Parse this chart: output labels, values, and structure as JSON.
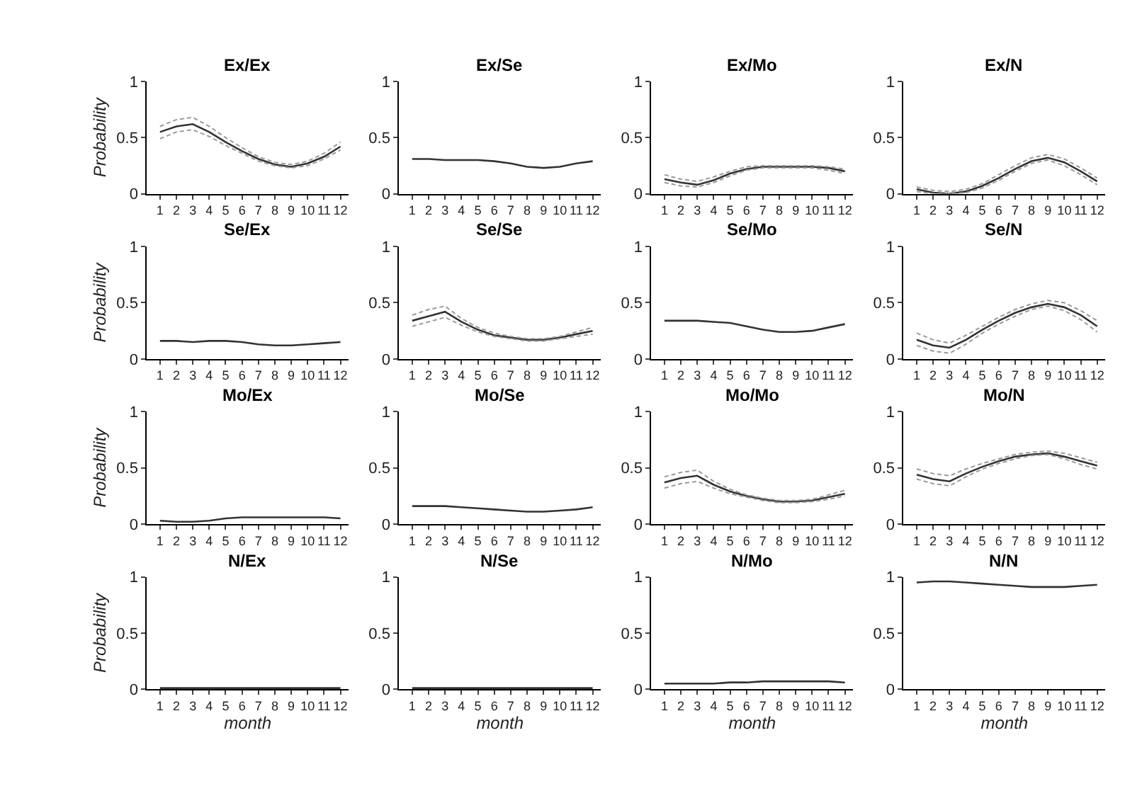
{
  "chart_data": [
    {
      "type": "line",
      "title": "Ex/Ex",
      "ylabel": "Probability",
      "x": [
        1,
        2,
        3,
        4,
        5,
        6,
        7,
        8,
        9,
        10,
        11,
        12
      ],
      "xlim": [
        0.2,
        12.5
      ],
      "xticks": [
        1,
        2,
        3,
        4,
        5,
        6,
        7,
        8,
        9,
        10,
        11,
        12
      ],
      "ylim": [
        0,
        1
      ],
      "yticks": [
        0,
        0.5,
        1
      ],
      "series": [
        {
          "color": "#333333",
          "values": [
            0.55,
            0.6,
            0.62,
            0.55,
            0.46,
            0.38,
            0.31,
            0.26,
            0.24,
            0.27,
            0.33,
            0.42
          ]
        },
        {
          "color": "#9a9a9a",
          "line_style": "dashed",
          "values": [
            0.49,
            0.55,
            0.57,
            0.51,
            0.43,
            0.36,
            0.29,
            0.25,
            0.23,
            0.25,
            0.31,
            0.39
          ]
        },
        {
          "color": "#9a9a9a",
          "line_style": "dashed",
          "values": [
            0.6,
            0.66,
            0.68,
            0.6,
            0.5,
            0.41,
            0.33,
            0.28,
            0.26,
            0.29,
            0.36,
            0.46
          ]
        }
      ]
    },
    {
      "type": "line",
      "title": "Ex/Se",
      "x": [
        1,
        2,
        3,
        4,
        5,
        6,
        7,
        8,
        9,
        10,
        11,
        12
      ],
      "xlim": [
        0.2,
        12.5
      ],
      "xticks": [
        1,
        2,
        3,
        4,
        5,
        6,
        7,
        8,
        9,
        10,
        11,
        12
      ],
      "ylim": [
        0,
        1
      ],
      "yticks": [
        0,
        0.5,
        1
      ],
      "series": [
        {
          "color": "#333333",
          "values": [
            0.31,
            0.31,
            0.3,
            0.3,
            0.3,
            0.29,
            0.27,
            0.24,
            0.23,
            0.24,
            0.27,
            0.29
          ]
        }
      ]
    },
    {
      "type": "line",
      "title": "Ex/Mo",
      "x": [
        1,
        2,
        3,
        4,
        5,
        6,
        7,
        8,
        9,
        10,
        11,
        12
      ],
      "xlim": [
        0.2,
        12.5
      ],
      "xticks": [
        1,
        2,
        3,
        4,
        5,
        6,
        7,
        8,
        9,
        10,
        11,
        12
      ],
      "ylim": [
        0,
        1
      ],
      "yticks": [
        0,
        0.5,
        1
      ],
      "series": [
        {
          "color": "#333333",
          "values": [
            0.13,
            0.1,
            0.08,
            0.12,
            0.18,
            0.22,
            0.24,
            0.24,
            0.24,
            0.24,
            0.23,
            0.2
          ]
        },
        {
          "color": "#9a9a9a",
          "line_style": "dashed",
          "values": [
            0.1,
            0.07,
            0.06,
            0.1,
            0.16,
            0.21,
            0.23,
            0.23,
            0.23,
            0.23,
            0.21,
            0.18
          ]
        },
        {
          "color": "#9a9a9a",
          "line_style": "dashed",
          "values": [
            0.17,
            0.13,
            0.11,
            0.15,
            0.2,
            0.24,
            0.25,
            0.25,
            0.25,
            0.25,
            0.24,
            0.22
          ]
        }
      ]
    },
    {
      "type": "line",
      "title": "Ex/N",
      "x": [
        1,
        2,
        3,
        4,
        5,
        6,
        7,
        8,
        9,
        10,
        11,
        12
      ],
      "xlim": [
        0.2,
        12.5
      ],
      "xticks": [
        1,
        2,
        3,
        4,
        5,
        6,
        7,
        8,
        9,
        10,
        11,
        12
      ],
      "ylim": [
        0,
        1
      ],
      "yticks": [
        0,
        0.5,
        1
      ],
      "series": [
        {
          "color": "#333333",
          "values": [
            0.04,
            0.01,
            0.0,
            0.02,
            0.07,
            0.14,
            0.22,
            0.29,
            0.32,
            0.28,
            0.2,
            0.11
          ]
        },
        {
          "color": "#9a9a9a",
          "line_style": "dashed",
          "values": [
            0.02,
            0.0,
            0.0,
            0.01,
            0.05,
            0.12,
            0.2,
            0.27,
            0.3,
            0.25,
            0.17,
            0.08
          ]
        },
        {
          "color": "#9a9a9a",
          "line_style": "dashed",
          "values": [
            0.06,
            0.03,
            0.02,
            0.04,
            0.09,
            0.17,
            0.25,
            0.32,
            0.35,
            0.31,
            0.23,
            0.14
          ]
        }
      ]
    },
    {
      "type": "line",
      "title": "Se/Ex",
      "ylabel": "Probability",
      "x": [
        1,
        2,
        3,
        4,
        5,
        6,
        7,
        8,
        9,
        10,
        11,
        12
      ],
      "xlim": [
        0.2,
        12.5
      ],
      "xticks": [
        1,
        2,
        3,
        4,
        5,
        6,
        7,
        8,
        9,
        10,
        11,
        12
      ],
      "ylim": [
        0,
        1
      ],
      "yticks": [
        0,
        0.5,
        1
      ],
      "series": [
        {
          "color": "#333333",
          "values": [
            0.16,
            0.16,
            0.15,
            0.16,
            0.16,
            0.15,
            0.13,
            0.12,
            0.12,
            0.13,
            0.14,
            0.15
          ]
        }
      ]
    },
    {
      "type": "line",
      "title": "Se/Se",
      "x": [
        1,
        2,
        3,
        4,
        5,
        6,
        7,
        8,
        9,
        10,
        11,
        12
      ],
      "xlim": [
        0.2,
        12.5
      ],
      "xticks": [
        1,
        2,
        3,
        4,
        5,
        6,
        7,
        8,
        9,
        10,
        11,
        12
      ],
      "ylim": [
        0,
        1
      ],
      "yticks": [
        0,
        0.5,
        1
      ],
      "series": [
        {
          "color": "#333333",
          "values": [
            0.34,
            0.38,
            0.42,
            0.33,
            0.26,
            0.21,
            0.19,
            0.17,
            0.17,
            0.19,
            0.22,
            0.25
          ]
        },
        {
          "color": "#9a9a9a",
          "line_style": "dashed",
          "values": [
            0.29,
            0.33,
            0.37,
            0.3,
            0.24,
            0.2,
            0.18,
            0.16,
            0.16,
            0.18,
            0.2,
            0.22
          ]
        },
        {
          "color": "#9a9a9a",
          "line_style": "dashed",
          "values": [
            0.39,
            0.44,
            0.47,
            0.36,
            0.28,
            0.23,
            0.2,
            0.18,
            0.18,
            0.2,
            0.24,
            0.28
          ]
        }
      ]
    },
    {
      "type": "line",
      "title": "Se/Mo",
      "x": [
        1,
        2,
        3,
        4,
        5,
        6,
        7,
        8,
        9,
        10,
        11,
        12
      ],
      "xlim": [
        0.2,
        12.5
      ],
      "xticks": [
        1,
        2,
        3,
        4,
        5,
        6,
        7,
        8,
        9,
        10,
        11,
        12
      ],
      "ylim": [
        0,
        1
      ],
      "yticks": [
        0,
        0.5,
        1
      ],
      "series": [
        {
          "color": "#333333",
          "values": [
            0.34,
            0.34,
            0.34,
            0.33,
            0.32,
            0.29,
            0.26,
            0.24,
            0.24,
            0.25,
            0.28,
            0.31
          ]
        }
      ]
    },
    {
      "type": "line",
      "title": "Se/N",
      "x": [
        1,
        2,
        3,
        4,
        5,
        6,
        7,
        8,
        9,
        10,
        11,
        12
      ],
      "xlim": [
        0.2,
        12.5
      ],
      "xticks": [
        1,
        2,
        3,
        4,
        5,
        6,
        7,
        8,
        9,
        10,
        11,
        12
      ],
      "ylim": [
        0,
        1
      ],
      "yticks": [
        0,
        0.5,
        1
      ],
      "series": [
        {
          "color": "#333333",
          "values": [
            0.17,
            0.12,
            0.1,
            0.17,
            0.26,
            0.34,
            0.41,
            0.46,
            0.49,
            0.46,
            0.39,
            0.29
          ]
        },
        {
          "color": "#9a9a9a",
          "line_style": "dashed",
          "values": [
            0.12,
            0.07,
            0.05,
            0.13,
            0.23,
            0.31,
            0.38,
            0.44,
            0.47,
            0.43,
            0.35,
            0.24
          ]
        },
        {
          "color": "#9a9a9a",
          "line_style": "dashed",
          "values": [
            0.23,
            0.17,
            0.14,
            0.21,
            0.29,
            0.37,
            0.44,
            0.49,
            0.52,
            0.5,
            0.43,
            0.34
          ]
        }
      ]
    },
    {
      "type": "line",
      "title": "Mo/Ex",
      "ylabel": "Probability",
      "x": [
        1,
        2,
        3,
        4,
        5,
        6,
        7,
        8,
        9,
        10,
        11,
        12
      ],
      "xlim": [
        0.2,
        12.5
      ],
      "xticks": [
        1,
        2,
        3,
        4,
        5,
        6,
        7,
        8,
        9,
        10,
        11,
        12
      ],
      "ylim": [
        0,
        1
      ],
      "yticks": [
        0,
        0.5,
        1
      ],
      "series": [
        {
          "color": "#333333",
          "values": [
            0.03,
            0.02,
            0.02,
            0.03,
            0.05,
            0.06,
            0.06,
            0.06,
            0.06,
            0.06,
            0.06,
            0.05
          ]
        }
      ]
    },
    {
      "type": "line",
      "title": "Mo/Se",
      "x": [
        1,
        2,
        3,
        4,
        5,
        6,
        7,
        8,
        9,
        10,
        11,
        12
      ],
      "xlim": [
        0.2,
        12.5
      ],
      "xticks": [
        1,
        2,
        3,
        4,
        5,
        6,
        7,
        8,
        9,
        10,
        11,
        12
      ],
      "ylim": [
        0,
        1
      ],
      "yticks": [
        0,
        0.5,
        1
      ],
      "series": [
        {
          "color": "#333333",
          "values": [
            0.16,
            0.16,
            0.16,
            0.15,
            0.14,
            0.13,
            0.12,
            0.11,
            0.11,
            0.12,
            0.13,
            0.15
          ]
        }
      ]
    },
    {
      "type": "line",
      "title": "Mo/Mo",
      "x": [
        1,
        2,
        3,
        4,
        5,
        6,
        7,
        8,
        9,
        10,
        11,
        12
      ],
      "xlim": [
        0.2,
        12.5
      ],
      "xticks": [
        1,
        2,
        3,
        4,
        5,
        6,
        7,
        8,
        9,
        10,
        11,
        12
      ],
      "ylim": [
        0,
        1
      ],
      "yticks": [
        0,
        0.5,
        1
      ],
      "series": [
        {
          "color": "#333333",
          "values": [
            0.37,
            0.41,
            0.43,
            0.35,
            0.29,
            0.25,
            0.22,
            0.2,
            0.2,
            0.21,
            0.24,
            0.27
          ]
        },
        {
          "color": "#9a9a9a",
          "line_style": "dashed",
          "values": [
            0.32,
            0.36,
            0.38,
            0.32,
            0.27,
            0.24,
            0.21,
            0.19,
            0.19,
            0.2,
            0.22,
            0.25
          ]
        },
        {
          "color": "#9a9a9a",
          "line_style": "dashed",
          "values": [
            0.42,
            0.46,
            0.48,
            0.38,
            0.31,
            0.26,
            0.23,
            0.21,
            0.21,
            0.22,
            0.26,
            0.3
          ]
        }
      ]
    },
    {
      "type": "line",
      "title": "Mo/N",
      "x": [
        1,
        2,
        3,
        4,
        5,
        6,
        7,
        8,
        9,
        10,
        11,
        12
      ],
      "xlim": [
        0.2,
        12.5
      ],
      "xticks": [
        1,
        2,
        3,
        4,
        5,
        6,
        7,
        8,
        9,
        10,
        11,
        12
      ],
      "ylim": [
        0,
        1
      ],
      "yticks": [
        0,
        0.5,
        1
      ],
      "series": [
        {
          "color": "#333333",
          "values": [
            0.44,
            0.4,
            0.38,
            0.45,
            0.51,
            0.56,
            0.6,
            0.62,
            0.63,
            0.6,
            0.56,
            0.52
          ]
        },
        {
          "color": "#9a9a9a",
          "line_style": "dashed",
          "values": [
            0.4,
            0.36,
            0.34,
            0.42,
            0.49,
            0.54,
            0.58,
            0.61,
            0.62,
            0.58,
            0.53,
            0.49
          ]
        },
        {
          "color": "#9a9a9a",
          "line_style": "dashed",
          "values": [
            0.49,
            0.45,
            0.43,
            0.49,
            0.54,
            0.58,
            0.62,
            0.64,
            0.65,
            0.63,
            0.59,
            0.55
          ]
        }
      ]
    },
    {
      "type": "line",
      "title": "N/Ex",
      "ylabel": "Probability",
      "xlabel": "month",
      "x": [
        1,
        2,
        3,
        4,
        5,
        6,
        7,
        8,
        9,
        10,
        11,
        12
      ],
      "xlim": [
        0.2,
        12.5
      ],
      "xticks": [
        1,
        2,
        3,
        4,
        5,
        6,
        7,
        8,
        9,
        10,
        11,
        12
      ],
      "ylim": [
        0,
        1
      ],
      "yticks": [
        0,
        0.5,
        1
      ],
      "series": [
        {
          "color": "#333333",
          "values": [
            0.01,
            0.01,
            0.01,
            0.01,
            0.01,
            0.01,
            0.01,
            0.01,
            0.01,
            0.01,
            0.01,
            0.01
          ]
        }
      ]
    },
    {
      "type": "line",
      "title": "N/Se",
      "xlabel": "month",
      "x": [
        1,
        2,
        3,
        4,
        5,
        6,
        7,
        8,
        9,
        10,
        11,
        12
      ],
      "xlim": [
        0.2,
        12.5
      ],
      "xticks": [
        1,
        2,
        3,
        4,
        5,
        6,
        7,
        8,
        9,
        10,
        11,
        12
      ],
      "ylim": [
        0,
        1
      ],
      "yticks": [
        0,
        0.5,
        1
      ],
      "series": [
        {
          "color": "#333333",
          "values": [
            0.01,
            0.01,
            0.01,
            0.01,
            0.01,
            0.01,
            0.01,
            0.01,
            0.01,
            0.01,
            0.01,
            0.01
          ]
        }
      ]
    },
    {
      "type": "line",
      "title": "N/Mo",
      "xlabel": "month",
      "x": [
        1,
        2,
        3,
        4,
        5,
        6,
        7,
        8,
        9,
        10,
        11,
        12
      ],
      "xlim": [
        0.2,
        12.5
      ],
      "xticks": [
        1,
        2,
        3,
        4,
        5,
        6,
        7,
        8,
        9,
        10,
        11,
        12
      ],
      "ylim": [
        0,
        1
      ],
      "yticks": [
        0,
        0.5,
        1
      ],
      "series": [
        {
          "color": "#333333",
          "values": [
            0.05,
            0.05,
            0.05,
            0.05,
            0.06,
            0.06,
            0.07,
            0.07,
            0.07,
            0.07,
            0.07,
            0.06
          ]
        }
      ]
    },
    {
      "type": "line",
      "title": "N/N",
      "xlabel": "month",
      "x": [
        1,
        2,
        3,
        4,
        5,
        6,
        7,
        8,
        9,
        10,
        11,
        12
      ],
      "xlim": [
        0.2,
        12.5
      ],
      "xticks": [
        1,
        2,
        3,
        4,
        5,
        6,
        7,
        8,
        9,
        10,
        11,
        12
      ],
      "ylim": [
        0,
        1
      ],
      "yticks": [
        0,
        0.5,
        1
      ],
      "series": [
        {
          "color": "#333333",
          "values": [
            0.95,
            0.96,
            0.96,
            0.95,
            0.94,
            0.93,
            0.92,
            0.91,
            0.91,
            0.91,
            0.92,
            0.93
          ]
        }
      ]
    }
  ]
}
